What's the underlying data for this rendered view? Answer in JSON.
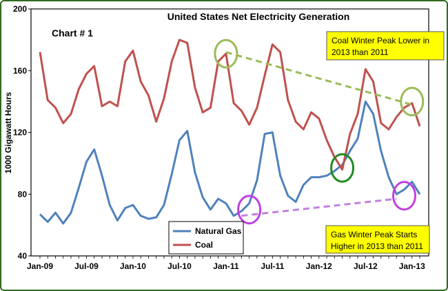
{
  "chart_data": {
    "type": "line",
    "title": "United States Net Electricity Generation",
    "chart_label": "Chart # 1",
    "ylabel": "1000 Gigawatt Hours",
    "xlabel": "",
    "ylim": [
      40,
      200
    ],
    "yticks": [
      40,
      80,
      120,
      160,
      200
    ],
    "x": [
      "2009-01",
      "2009-02",
      "2009-03",
      "2009-04",
      "2009-05",
      "2009-06",
      "2009-07",
      "2009-08",
      "2009-09",
      "2009-10",
      "2009-11",
      "2009-12",
      "2010-01",
      "2010-02",
      "2010-03",
      "2010-04",
      "2010-05",
      "2010-06",
      "2010-07",
      "2010-08",
      "2010-09",
      "2010-10",
      "2010-11",
      "2010-12",
      "2011-01",
      "2011-02",
      "2011-03",
      "2011-04",
      "2011-05",
      "2011-06",
      "2011-07",
      "2011-08",
      "2011-09",
      "2011-10",
      "2011-11",
      "2011-12",
      "2012-01",
      "2012-02",
      "2012-03",
      "2012-04",
      "2012-05",
      "2012-06",
      "2012-07",
      "2012-08",
      "2012-09",
      "2012-10",
      "2012-11",
      "2012-12",
      "2013-01",
      "2013-02"
    ],
    "xtick_labels": [
      {
        "index": 0,
        "label": "Jan-09"
      },
      {
        "index": 6,
        "label": "Jul-09"
      },
      {
        "index": 12,
        "label": "Jan-10"
      },
      {
        "index": 18,
        "label": "Jul-10"
      },
      {
        "index": 24,
        "label": "Jan-11"
      },
      {
        "index": 30,
        "label": "Jul-11"
      },
      {
        "index": 36,
        "label": "Jan-12"
      },
      {
        "index": 42,
        "label": "Jul-12"
      },
      {
        "index": 48,
        "label": "Jan-13"
      }
    ],
    "series": [
      {
        "name": "Natural Gas",
        "color": "#4f81bd",
        "values": [
          67,
          62,
          68,
          61,
          68,
          84,
          101,
          109,
          92,
          73,
          63,
          71,
          73,
          66,
          64,
          65,
          73,
          93,
          115,
          121,
          94,
          78,
          70,
          77,
          74,
          66,
          69,
          74,
          89,
          119,
          120,
          92,
          79,
          75,
          86,
          91,
          91,
          92,
          95,
          99,
          108,
          116,
          140,
          132,
          108,
          91,
          80,
          83,
          88,
          80
        ]
      },
      {
        "name": "Coal",
        "color": "#c0504d",
        "values": [
          172,
          141,
          136,
          126,
          132,
          148,
          158,
          163,
          137,
          140,
          137,
          166,
          173,
          153,
          144,
          127,
          142,
          166,
          180,
          178,
          149,
          133,
          136,
          166,
          171,
          139,
          134,
          125,
          136,
          157,
          177,
          172,
          141,
          127,
          122,
          133,
          129,
          115,
          104,
          96,
          119,
          132,
          161,
          153,
          126,
          122,
          130,
          136,
          139,
          124
        ]
      }
    ],
    "legend": {
      "placement": "bottom-left",
      "entries": [
        "Natural Gas",
        "Coal"
      ]
    },
    "annotations": {
      "coal_note": {
        "line1": "Coal Winter Peak Lower in",
        "line2": "2013 than 2011",
        "background": "#ffff00"
      },
      "gas_note": {
        "line1": "Gas Winter Peak Starts",
        "line2": "Higher in 2013 than 2011",
        "background": "#ffff00"
      },
      "coal_trend": {
        "from": {
          "x": "2011-01",
          "y": 172
        },
        "to": {
          "x": "2013-01",
          "y": 138
        },
        "color": "#9bbb59"
      },
      "gas_trend": {
        "from": {
          "x": "2011-03",
          "y": 66
        },
        "to": {
          "x": "2012-11",
          "y": 77
        },
        "color": "#c080e0"
      },
      "circles": [
        {
          "x": "2011-01",
          "y": 171,
          "color": "#9bbb59"
        },
        {
          "x": "2013-01",
          "y": 140,
          "color": "#9bbb59"
        },
        {
          "x": "2012-04",
          "y": 97,
          "color": "#1f8a1f"
        },
        {
          "x": "2011-04",
          "y": 70,
          "color": "#c040e0"
        },
        {
          "x": "2012-12",
          "y": 79,
          "color": "#c040e0"
        }
      ]
    },
    "grid": false
  }
}
